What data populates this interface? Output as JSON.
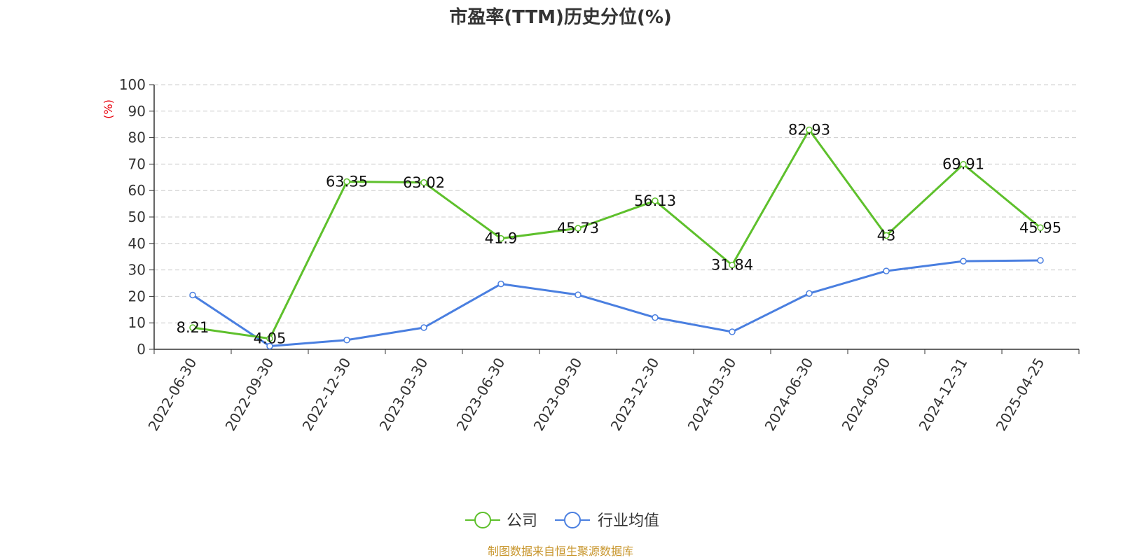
{
  "chart_data": {
    "type": "line",
    "title": "市盈率(TTM)历史分位(%)",
    "ylabel": "(%)",
    "ylim": [
      0,
      100
    ],
    "yticks": [
      0,
      10,
      20,
      30,
      40,
      50,
      60,
      70,
      80,
      90,
      100
    ],
    "grid": true,
    "legend_position": "bottom",
    "categories": [
      "2022-06-30",
      "2022-09-30",
      "2022-12-30",
      "2023-03-30",
      "2023-06-30",
      "2023-09-30",
      "2023-12-30",
      "2024-03-30",
      "2024-06-30",
      "2024-09-30",
      "2024-12-31",
      "2025-04-25"
    ],
    "series": [
      {
        "name": "公司",
        "color": "#5ec02c",
        "values": [
          8.21,
          4.05,
          63.35,
          63.02,
          41.9,
          45.73,
          56.13,
          31.84,
          82.93,
          43,
          69.91,
          45.95
        ],
        "labels": [
          "8.21",
          "4.05",
          "63.35",
          "63.02",
          "41.9",
          "45.73",
          "56.13",
          "31.84",
          "82.93",
          "43",
          "69.91",
          "45.95"
        ]
      },
      {
        "name": "行业均值",
        "color": "#4a7fe0",
        "values": [
          20.5,
          1.2,
          3.5,
          8.2,
          24.7,
          20.6,
          12.0,
          6.6,
          21.1,
          29.6,
          33.3,
          33.6
        ]
      }
    ]
  },
  "footer": {
    "source": "制图数据来自恒生聚源数据库",
    "source_color": "#c8962d"
  }
}
